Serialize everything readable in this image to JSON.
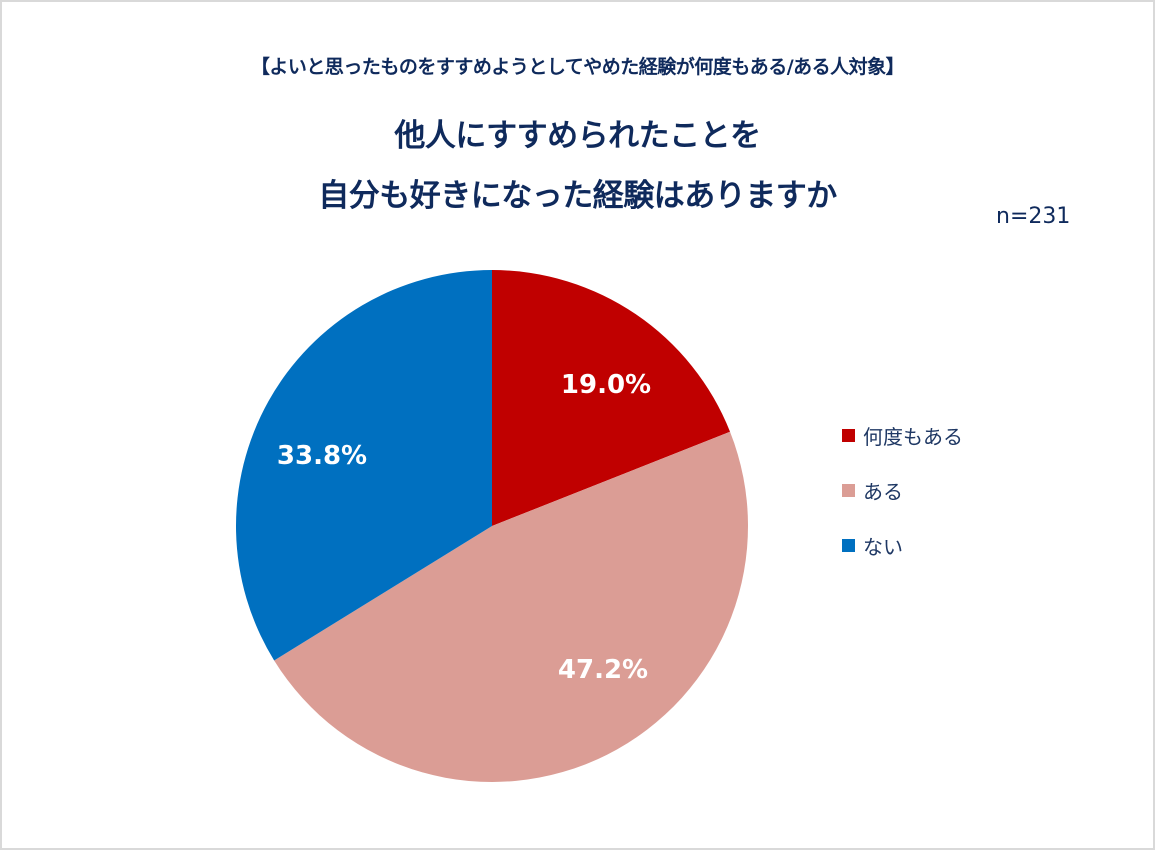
{
  "header": {
    "subtitle": "【よいと思ったものをすすめようとしてやめた経験が何度もある/ある人対象】",
    "title_line1": "他人にすすめられたことを",
    "title_line2": "自分も好きになった経験はありますか",
    "sample_size": "n=231"
  },
  "legend": [
    {
      "label": "何度もある",
      "color": "#c00000"
    },
    {
      "label": "ある",
      "color": "#db9d95"
    },
    {
      "label": "ない",
      "color": "#0070c0"
    }
  ],
  "slices": [
    {
      "label": "19.0%"
    },
    {
      "label": "47.2%"
    },
    {
      "label": "33.8%"
    }
  ],
  "chart_data": {
    "type": "pie",
    "title": "他人にすすめられたことを自分も好きになった経験はありますか",
    "subtitle": "【よいと思ったものをすすめようとしてやめた経験が何度もある/ある人対象】",
    "annotation": "n=231",
    "categories": [
      "何度もある",
      "ある",
      "ない"
    ],
    "values": [
      19.0,
      47.2,
      33.8
    ],
    "unit": "%",
    "colors": [
      "#c00000",
      "#db9d95",
      "#0070c0"
    ],
    "legend_position": "right",
    "start_angle": "12 o'clock, clockwise"
  }
}
